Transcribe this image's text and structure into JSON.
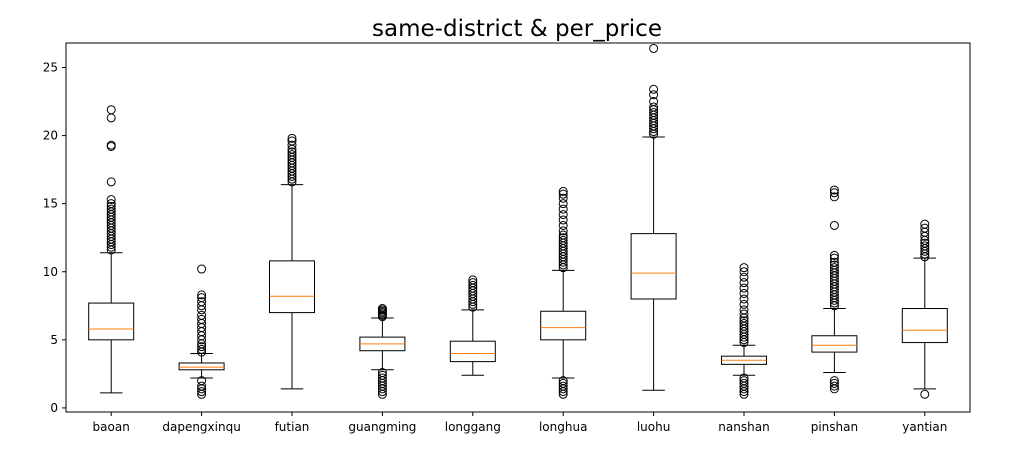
{
  "chart_data": {
    "type": "box",
    "title": "same-district & per_price",
    "xlabel": "",
    "ylabel": "",
    "ylim": [
      -0.3,
      26.8
    ],
    "yticks": [
      0,
      5,
      10,
      15,
      20,
      25
    ],
    "ytick_labels": [
      "0",
      "5",
      "10",
      "15",
      "20",
      "25"
    ],
    "grid": false,
    "legend": "none",
    "colors": {
      "box": "#000000",
      "median": "#ff7f0e",
      "flier": "#000000"
    },
    "categories": [
      "baoan",
      "dapengxinqu",
      "futian",
      "guangming",
      "longgang",
      "longhua",
      "luohu",
      "nanshan",
      "pinshan",
      "yantian"
    ],
    "boxes": [
      {
        "whislo": 1.1,
        "q1": 5.0,
        "med": 5.8,
        "q3": 7.7,
        "whishi": 11.4,
        "fliers": [
          11.6,
          11.8,
          12.0,
          12.2,
          12.4,
          12.6,
          12.8,
          13.0,
          13.2,
          13.4,
          13.6,
          13.8,
          14.0,
          14.2,
          14.4,
          14.6,
          14.8,
          15.0,
          15.3,
          16.6,
          19.2,
          19.3,
          21.3,
          21.9
        ]
      },
      {
        "whislo": 2.2,
        "q1": 2.8,
        "med": 3.0,
        "q3": 3.3,
        "whishi": 4.0,
        "fliers": [
          1.0,
          1.2,
          1.4,
          1.6,
          2.0,
          4.1,
          4.3,
          4.5,
          4.7,
          5.0,
          5.3,
          5.6,
          5.9,
          6.2,
          6.5,
          6.8,
          7.2,
          7.5,
          7.8,
          8.1,
          8.3,
          10.2
        ]
      },
      {
        "whislo": 1.4,
        "q1": 7.0,
        "med": 8.2,
        "q3": 10.8,
        "whishi": 16.4,
        "fliers": [
          16.6,
          16.8,
          17.0,
          17.2,
          17.4,
          17.6,
          17.8,
          18.0,
          18.2,
          18.4,
          18.6,
          18.8,
          19.0,
          19.3,
          19.6,
          19.8
        ]
      },
      {
        "whislo": 2.8,
        "q1": 4.2,
        "med": 4.7,
        "q3": 5.2,
        "whishi": 6.6,
        "fliers": [
          1.0,
          1.2,
          1.4,
          1.6,
          1.8,
          2.0,
          2.2,
          2.4,
          2.6,
          6.7,
          6.8,
          6.9,
          7.0,
          7.1,
          7.2,
          7.3
        ]
      },
      {
        "whislo": 2.4,
        "q1": 3.4,
        "med": 4.0,
        "q3": 4.9,
        "whishi": 7.2,
        "fliers": [
          7.4,
          7.6,
          7.8,
          8.0,
          8.2,
          8.4,
          8.6,
          8.8,
          9.0,
          9.2,
          9.4
        ]
      },
      {
        "whislo": 2.2,
        "q1": 5.0,
        "med": 5.9,
        "q3": 7.1,
        "whishi": 10.1,
        "fliers": [
          1.0,
          1.2,
          1.4,
          1.6,
          1.8,
          2.0,
          10.3,
          10.5,
          10.7,
          10.9,
          11.1,
          11.3,
          11.5,
          11.7,
          11.9,
          12.1,
          12.3,
          12.5,
          12.7,
          13.0,
          13.4,
          13.8,
          14.2,
          14.6,
          15.0,
          15.4,
          15.7,
          15.9
        ]
      },
      {
        "whislo": 1.3,
        "q1": 8.0,
        "med": 9.9,
        "q3": 12.8,
        "whishi": 19.9,
        "fliers": [
          20.1,
          20.3,
          20.5,
          20.7,
          20.9,
          21.1,
          21.3,
          21.5,
          21.7,
          21.9,
          22.1,
          22.5,
          23.0,
          23.4,
          26.4
        ]
      },
      {
        "whislo": 2.4,
        "q1": 3.2,
        "med": 3.5,
        "q3": 3.8,
        "whishi": 4.6,
        "fliers": [
          1.0,
          1.2,
          1.4,
          1.6,
          1.8,
          2.0,
          2.2,
          4.8,
          5.0,
          5.2,
          5.4,
          5.6,
          5.8,
          6.0,
          6.2,
          6.4,
          6.6,
          6.9,
          7.2,
          7.6,
          8.0,
          8.4,
          8.8,
          9.2,
          9.6,
          10.0,
          10.3
        ]
      },
      {
        "whislo": 2.6,
        "q1": 4.1,
        "med": 4.6,
        "q3": 5.3,
        "whishi": 7.3,
        "fliers": [
          1.4,
          1.6,
          1.8,
          2.0,
          7.5,
          7.7,
          7.9,
          8.1,
          8.3,
          8.5,
          8.7,
          8.9,
          9.1,
          9.3,
          9.5,
          9.7,
          9.9,
          10.1,
          10.3,
          10.5,
          10.7,
          11.0,
          11.2,
          13.4,
          15.5,
          15.8,
          16.0
        ]
      },
      {
        "whislo": 1.4,
        "q1": 4.8,
        "med": 5.7,
        "q3": 7.3,
        "whishi": 11.0,
        "fliers": [
          1.0,
          11.1,
          11.3,
          11.5,
          11.7,
          11.9,
          12.1,
          12.3,
          12.6,
          12.9,
          13.2,
          13.5
        ]
      }
    ]
  }
}
